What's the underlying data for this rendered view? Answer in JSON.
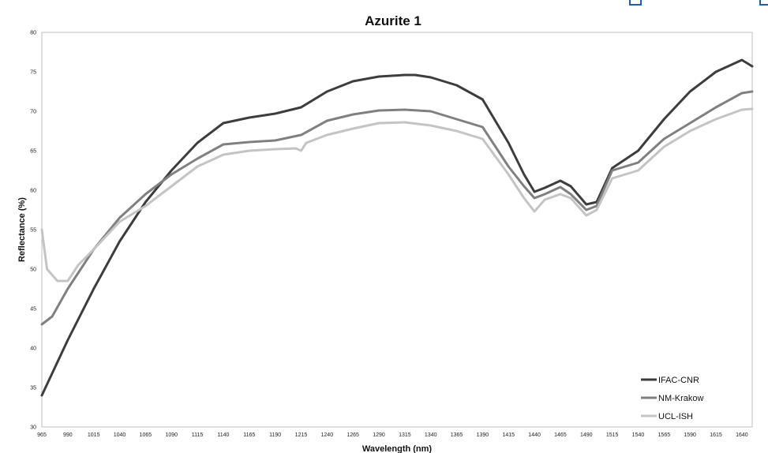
{
  "colors": {
    "IFAC-CNR": "#3d3d3d",
    "NM-Krakow": "#808080",
    "UCL-ISH": "#c4c4c4"
  },
  "chart_data": {
    "type": "line",
    "title": "Azurite 1",
    "xlabel": "Wavelength (nm)",
    "ylabel": "Reflectance (%)",
    "xlim": [
      965,
      1650
    ],
    "ylim": [
      30,
      80
    ],
    "yticks": [
      30,
      35,
      40,
      45,
      50,
      55,
      60,
      65,
      70,
      75,
      80
    ],
    "xticks": [
      965,
      990,
      1015,
      1040,
      1065,
      1090,
      1115,
      1140,
      1165,
      1190,
      1215,
      1240,
      1265,
      1290,
      1315,
      1340,
      1365,
      1390,
      1415,
      1440,
      1465,
      1490,
      1515,
      1540,
      1565,
      1590,
      1615,
      1640
    ],
    "grid": false,
    "legend": "bottom-right",
    "series": [
      {
        "name": "IFAC-CNR",
        "x": [
          965,
          990,
          1015,
          1040,
          1065,
          1090,
          1115,
          1140,
          1165,
          1190,
          1215,
          1240,
          1265,
          1290,
          1315,
          1325,
          1340,
          1365,
          1390,
          1415,
          1430,
          1440,
          1450,
          1465,
          1475,
          1490,
          1500,
          1515,
          1540,
          1565,
          1590,
          1615,
          1640,
          1650
        ],
        "y": [
          34,
          41,
          47.5,
          53.5,
          58.5,
          62.5,
          66,
          68.5,
          69.2,
          69.7,
          70.5,
          72.5,
          73.8,
          74.4,
          74.6,
          74.6,
          74.3,
          73.3,
          71.5,
          66,
          62,
          59.8,
          60.3,
          61.2,
          60.5,
          58.2,
          58.5,
          62.8,
          65,
          69,
          72.5,
          75,
          76.5,
          75.7
        ]
      },
      {
        "name": "NM-Krakow",
        "x": [
          965,
          975,
          990,
          1015,
          1040,
          1065,
          1090,
          1115,
          1140,
          1165,
          1190,
          1215,
          1240,
          1265,
          1290,
          1315,
          1340,
          1365,
          1390,
          1415,
          1430,
          1440,
          1450,
          1465,
          1475,
          1490,
          1500,
          1515,
          1540,
          1565,
          1590,
          1615,
          1640,
          1650
        ],
        "y": [
          43,
          44,
          47.5,
          52.5,
          56.5,
          59.5,
          62,
          64,
          65.8,
          66.1,
          66.3,
          67,
          68.8,
          69.6,
          70.1,
          70.2,
          70,
          69,
          68,
          63,
          60.5,
          59,
          59.5,
          60.4,
          59.5,
          57.5,
          58,
          62.5,
          63.5,
          66.5,
          68.5,
          70.5,
          72.3,
          72.5
        ]
      },
      {
        "name": "UCL-ISH",
        "x": [
          965,
          970,
          980,
          990,
          1000,
          1015,
          1040,
          1065,
          1090,
          1115,
          1140,
          1165,
          1190,
          1210,
          1215,
          1220,
          1240,
          1265,
          1290,
          1315,
          1340,
          1365,
          1390,
          1415,
          1430,
          1440,
          1450,
          1465,
          1475,
          1490,
          1500,
          1515,
          1540,
          1565,
          1590,
          1615,
          1640,
          1650
        ],
        "y": [
          55,
          50,
          48.5,
          48.5,
          50.5,
          52.5,
          56,
          58,
          60.5,
          63,
          64.5,
          65,
          65.2,
          65.3,
          65,
          66,
          67,
          67.8,
          68.5,
          68.6,
          68.2,
          67.5,
          66.5,
          62,
          59,
          57.3,
          58.8,
          59.5,
          59,
          56.8,
          57.5,
          61.5,
          62.5,
          65.5,
          67.5,
          69,
          70.2,
          70.3
        ]
      }
    ]
  }
}
